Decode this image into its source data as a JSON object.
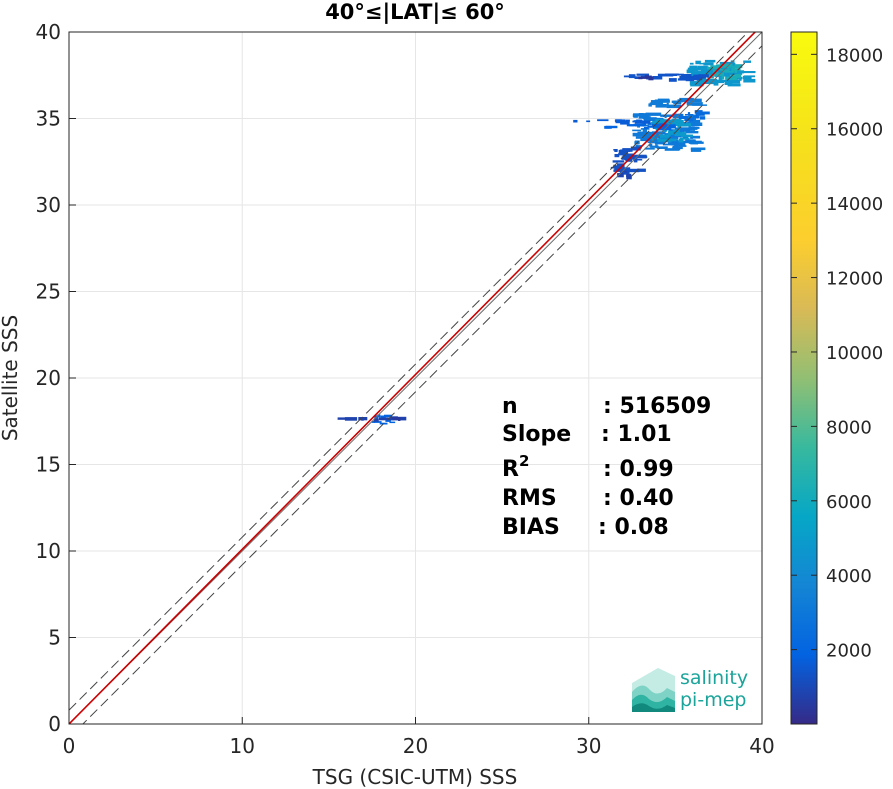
{
  "chart_data": {
    "type": "scatter",
    "title": "40°≤|LAT|≤ 60°",
    "xlabel": "TSG (CSIC-UTM) SSS",
    "ylabel": "Satellite SSS",
    "xlim": [
      0,
      40
    ],
    "ylim": [
      0,
      40
    ],
    "xticks": [
      "0",
      "10",
      "20",
      "30",
      "40"
    ],
    "yticks": [
      "0",
      "5",
      "10",
      "15",
      "20",
      "25",
      "30",
      "35",
      "40"
    ],
    "grid": true,
    "lines": [
      {
        "name": "fit",
        "color": "#cc0000",
        "points": [
          [
            0,
            0
          ],
          [
            40,
            40.4
          ]
        ]
      },
      {
        "name": "identity",
        "color": "#6b6b6b",
        "points": [
          [
            0,
            0
          ],
          [
            40,
            40
          ]
        ]
      },
      {
        "name": "upper",
        "color": "#444444",
        "dash": true,
        "points": [
          [
            0,
            0.8
          ],
          [
            40,
            40.8
          ]
        ]
      },
      {
        "name": "lower",
        "color": "#444444",
        "dash": true,
        "points": [
          [
            0,
            -0.8
          ],
          [
            40,
            39.2
          ]
        ]
      }
    ],
    "density_bins": [
      {
        "x": [
          35.5,
          39.0
        ],
        "y": [
          37.0,
          38.4
        ],
        "v": 5200
      },
      {
        "x": [
          36.8,
          38.6
        ],
        "y": [
          37.4,
          38.2
        ],
        "v": 7000
      },
      {
        "x": [
          32.0,
          36.5
        ],
        "y": [
          37.3,
          37.6
        ],
        "v": 1500
      },
      {
        "x": [
          32.8,
          33.6
        ],
        "y": [
          37.4,
          37.5
        ],
        "v": 400
      },
      {
        "x": [
          33.0,
          36.0
        ],
        "y": [
          35.8,
          36.2
        ],
        "v": 3600
      },
      {
        "x": [
          32.5,
          36.0
        ],
        "y": [
          33.2,
          35.4
        ],
        "v": 3400
      },
      {
        "x": [
          33.5,
          35.5
        ],
        "y": [
          33.8,
          35.0
        ],
        "v": 5400
      },
      {
        "x": [
          28.6,
          32.8
        ],
        "y": [
          34.85,
          35.0
        ],
        "v": 1800
      },
      {
        "x": [
          30.5,
          34.8
        ],
        "y": [
          34.5,
          34.7
        ],
        "v": 2200
      },
      {
        "x": [
          35.0,
          36.5
        ],
        "y": [
          35.0,
          35.5
        ],
        "v": 2600
      },
      {
        "x": [
          31.2,
          32.8
        ],
        "y": [
          31.8,
          33.4
        ],
        "v": 1400
      },
      {
        "x": [
          31.5,
          32.3
        ],
        "y": [
          31.7,
          32.0
        ],
        "v": 900
      },
      {
        "x": [
          17.4,
          18.6
        ],
        "y": [
          17.4,
          17.9
        ],
        "v": 2100
      },
      {
        "x": [
          15.4,
          18.8
        ],
        "y": [
          17.65,
          17.8
        ],
        "v": 900
      },
      {
        "x": [
          18.6,
          19.0
        ],
        "y": [
          17.68,
          17.75
        ],
        "v": 500
      }
    ]
  },
  "colorbar": {
    "min": 1,
    "max": 18600,
    "ticks": [
      "2000",
      "4000",
      "6000",
      "8000",
      "10000",
      "12000",
      "14000",
      "16000",
      "18000"
    ]
  },
  "stats": [
    {
      "label": "n",
      "value": ": 516509"
    },
    {
      "label": "Slope",
      "value": ": 1.01"
    },
    {
      "label": "R",
      "sup": "2",
      "value": ": 0.99"
    },
    {
      "label": "RMS",
      "value": ": 0.40"
    },
    {
      "label": "BIAS",
      "value": ": 0.08"
    }
  ],
  "logo": {
    "line1": "salinity",
    "line2": "pi-mep"
  }
}
